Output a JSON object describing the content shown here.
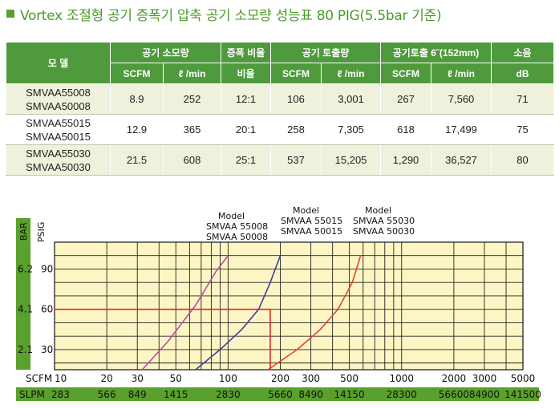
{
  "title": "Vortex 조절형 공기 증폭기  압축 공기 소모량 성능표 80 PIG(5.5bar 기준)",
  "table": {
    "header_top": {
      "model": "모 델",
      "air_consumption": "공기 소모량",
      "amplification": "증폭 비율",
      "air_output": "공기 토출량",
      "air_output_6": "공기토출 6˝(152mm)",
      "noise": "소음"
    },
    "header_sub": [
      "SCFM",
      "ℓ /min",
      "비율",
      "SCFM",
      "ℓ /min",
      "SCFM",
      "ℓ /min",
      "dB"
    ],
    "rows": [
      {
        "model1": "SMVAA55008",
        "model2": "SMVAA50008",
        "values": [
          "8.9",
          "252",
          "12:1",
          "106",
          "3,001",
          "267",
          "7,560",
          "71"
        ]
      },
      {
        "model1": "SMVAA55015",
        "model2": "SMVAA50015",
        "values": [
          "12.9",
          "365",
          "20:1",
          "258",
          "7,305",
          "618",
          "17,499",
          "75"
        ]
      },
      {
        "model1": "SMVAA55030",
        "model2": "SMVAA50030",
        "values": [
          "21.5",
          "608",
          "25:1",
          "537",
          "15,205",
          "1,290",
          "36,527",
          "80"
        ]
      }
    ]
  },
  "chart_data": {
    "type": "line",
    "xscale": "log",
    "x_axis_label": "SCFM",
    "x2_axis_label": "SLPM",
    "y_axis_label": "BAR",
    "y2_axis_label": "PSIG",
    "xlim": [
      10,
      5000
    ],
    "ylim_psig": [
      15,
      110
    ],
    "x_ticks": [
      10,
      20,
      30,
      50,
      100,
      200,
      300,
      500,
      1000,
      2000,
      3000,
      5000
    ],
    "x_tick_labels": [
      "10",
      "20",
      "30",
      "50",
      "100",
      "200",
      "300",
      "500",
      "1000",
      "2000",
      "3000",
      "5000"
    ],
    "x2_tick_labels": [
      "283",
      "566",
      "849",
      "1415",
      "2830",
      "5660",
      "8490",
      "14150",
      "28300",
      "56600",
      "84900",
      "141500"
    ],
    "y_ticks_psig": [
      30,
      60,
      90
    ],
    "y_tick_labels_psig": [
      "30",
      "60",
      "90"
    ],
    "y_tick_labels_bar": [
      "2.1",
      "4.1",
      "6.2"
    ],
    "grid": true,
    "series": [
      {
        "name": "Model\nSMVAA 55008\nSMVAA 50008",
        "color": "#b84aa0",
        "x": [
          32,
          45,
          65,
          85,
          100
        ],
        "y": [
          15,
          36,
          63,
          88,
          100
        ]
      },
      {
        "name": "Model\nSMVAA 55015\nSMVAA 50015",
        "color": "#3a3f9a",
        "x": [
          65,
          90,
          120,
          150,
          175,
          200
        ],
        "y": [
          15,
          30,
          45,
          60,
          80,
          100
        ]
      },
      {
        "name": "Model\nSMVAA 55030\nSMVAA 50030",
        "color": "#e2452e",
        "x": [
          170,
          250,
          340,
          430,
          520,
          580
        ],
        "y": [
          15,
          30,
          45,
          60,
          80,
          100
        ]
      }
    ],
    "annotation": {
      "color": "#d42a2a",
      "x_at": 175,
      "y_at": 60
    }
  }
}
